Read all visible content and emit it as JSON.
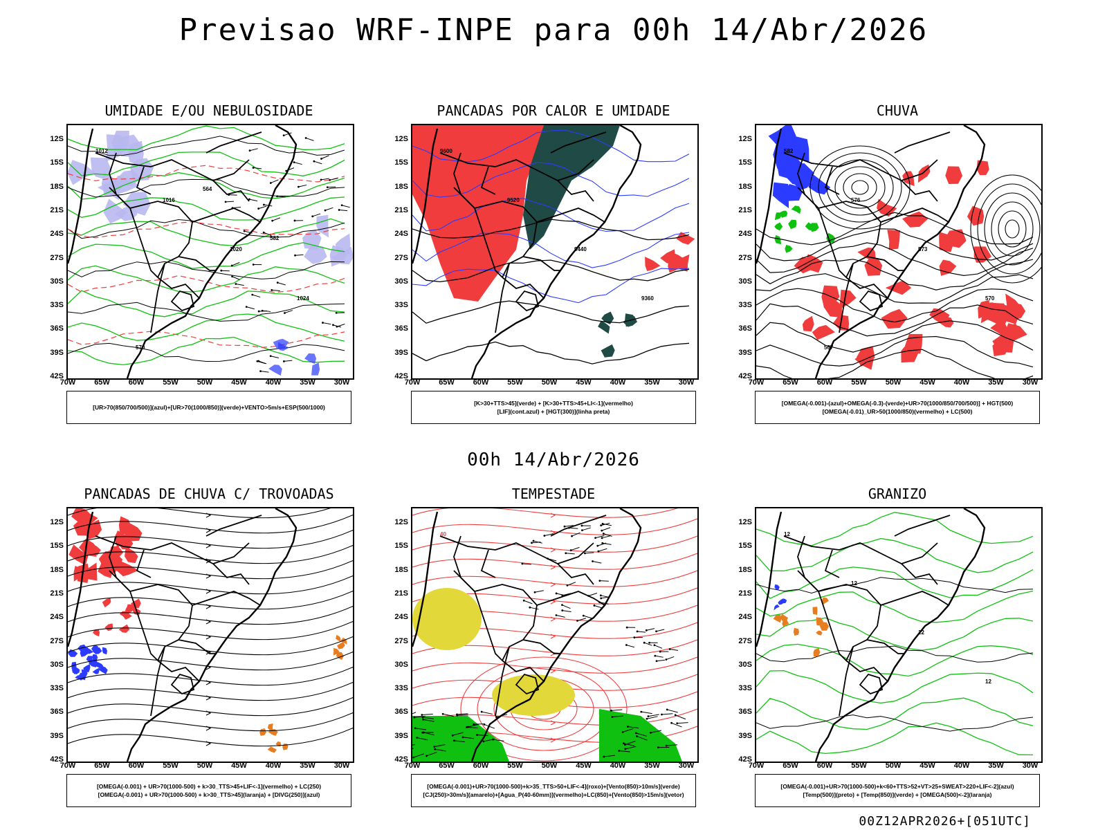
{
  "title": "Previsao WRF-INPE  para 00h 14/Abr/2026",
  "mid_date": "00h 14/Abr/2026",
  "footer": "00Z12APR2026+[051UTC]",
  "lat_labels": [
    "12S",
    "15S",
    "18S",
    "21S",
    "24S",
    "27S",
    "30S",
    "33S",
    "36S",
    "39S",
    "42S"
  ],
  "lon_labels": [
    "70W",
    "65W",
    "60W",
    "55W",
    "50W",
    "45W",
    "40W",
    "35W",
    "30W"
  ],
  "colors": {
    "blue": "#2b3bff",
    "green": "#10c010",
    "red": "#f03c3c",
    "dark": "#1f4a45",
    "yellow": "#e3d83a",
    "orange": "#e87d20",
    "lavender": "#b8b8f0"
  },
  "panels": [
    {
      "title": "UMIDADE E/OU NEBULOSIDADE",
      "legend": [
        "[UR>70(850/700/500)](azul)+[UR>70(1000/850)](verde)+VENTO>5m/s+ESP(500/1000)"
      ],
      "contour_labels": [
        "1012",
        "1016",
        "1020",
        "1024",
        "570",
        "564",
        "582"
      ]
    },
    {
      "title": "PANCADAS POR CALOR E UMIDADE",
      "legend": [
        "[K>30+TTS>45](verde) + [K>30+TTS>45+LI<-1](vermelho)",
        "[LIF](cont.azul) + [HGT(300)](linha preta)"
      ],
      "contour_labels": [
        "9600",
        "9520",
        "9440",
        "9360"
      ]
    },
    {
      "title": "CHUVA",
      "legend": [
        "[OMEGA(-0.001)-(azul)+OMEGA(-0.3)-(verde)+UR>70(1000/850/700/500)] + HGT(500)",
        "[OMEGA(-0.01)_UR>50(1000/850)(vermelho) + LC(500)"
      ],
      "contour_labels": [
        "582",
        "576",
        "573",
        "570",
        "567"
      ]
    },
    {
      "title": "PANCADAS DE CHUVA C/ TROVOADAS",
      "legend": [
        "[OMEGA(-0.001) + UR>70(1000-500) + k>30_TTS>45+LIF<-1](vermelho) + LC(250)",
        "[OMEGA(-0.001) + UR>70(1000-500) + k>30_TTS>45](laranja) + [DIVG(250)](azul)"
      ],
      "contour_labels": []
    },
    {
      "title": "TEMPESTADE",
      "legend": [
        "[OMEGA(-0.001)+UR>70(1000-500)+k>35_TTS>50+LIF<-4](roxo)+[Vento(850)>10m/s](verde)",
        "[CJ(250)>30m/s](amarelo)+[Agua_P(40-60mm)](vermelho)+LC(850)+[Vento(850)>15m/s](vetor)"
      ],
      "contour_labels": [
        "40"
      ]
    },
    {
      "title": "GRANIZO",
      "legend": [
        "[OMEGA(-0.001)+UR>70(1000-500)+k<60+TTS>52+VT>25+SWEAT>220+LIF<-2](azul)",
        "[Temp(500)](preto) + [Temp(850)](verde) + [OMEGA(500)<-2](laranja)"
      ],
      "contour_labels": [
        "12",
        "12",
        "12",
        "12"
      ]
    }
  ]
}
